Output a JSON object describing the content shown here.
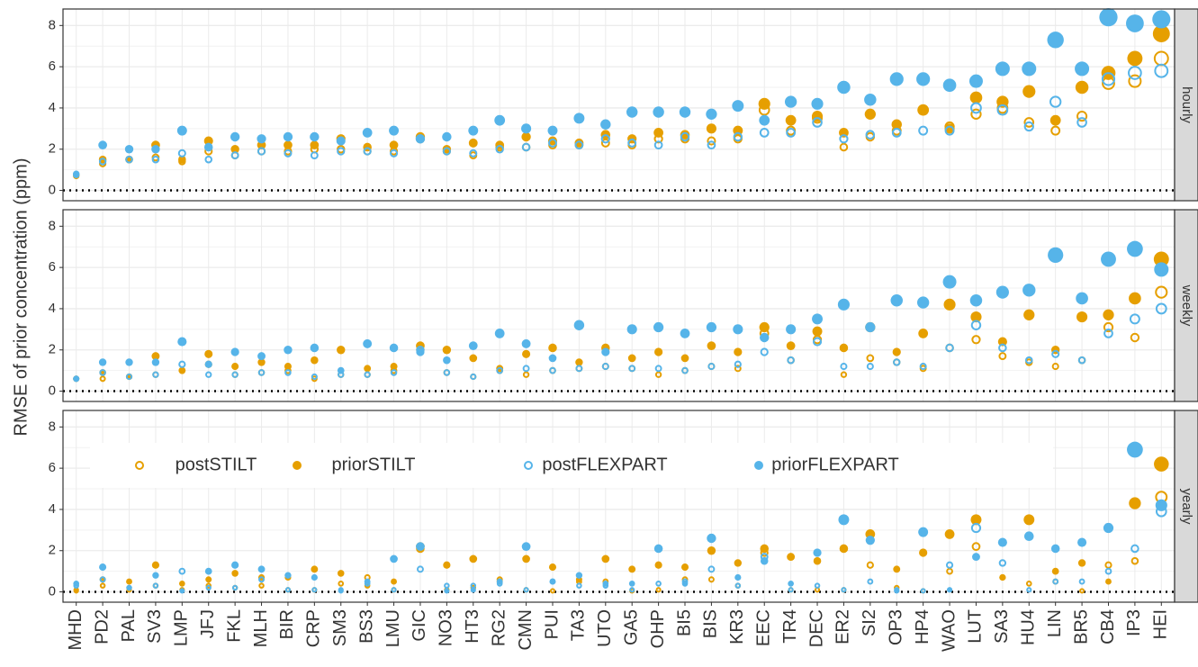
{
  "chart_data": {
    "type": "dot",
    "ylabel": "RMSE of prior concentration (ppm)",
    "categories": [
      "MHD",
      "PD2",
      "PAL",
      "SV3",
      "LMP",
      "JFJ",
      "FKL",
      "MLH",
      "BIR",
      "CRP",
      "SM3",
      "BS3",
      "LMU",
      "GIC",
      "NO3",
      "HT3",
      "RG2",
      "CMN",
      "PUI",
      "TA3",
      "UTO",
      "GA5",
      "OHP",
      "BI5",
      "BIS",
      "KR3",
      "EEC",
      "TR4",
      "DEC",
      "ER2",
      "SI2",
      "OP3",
      "HP4",
      "WAO",
      "LUT",
      "SA3",
      "HU4",
      "LIN",
      "BR5",
      "CB4",
      "IP3",
      "HEI"
    ],
    "ylim": [
      -0.5,
      8.8
    ],
    "yticks": [
      0,
      2,
      4,
      6,
      8
    ],
    "grid": true,
    "hline": 0,
    "series": [
      {
        "name": "postSTILT",
        "color": "#E69F00",
        "marker": "open"
      },
      {
        "name": "priorSTILT",
        "color": "#E69F00",
        "marker": "filled"
      },
      {
        "name": "postFLEXPART",
        "color": "#56B4E9",
        "marker": "open"
      },
      {
        "name": "priorFLEXPART",
        "color": "#56B4E9",
        "marker": "filled"
      }
    ],
    "facets": [
      {
        "label": "hourly",
        "values": [
          [
            0.7,
            1.3,
            1.5,
            1.6,
            1.4,
            1.9,
            1.7,
            1.9,
            1.9,
            2.0,
            2.0,
            1.9,
            1.9,
            2.5,
            1.9,
            1.7,
            2.1,
            2.1,
            2.2,
            2.2,
            2.3,
            2.2,
            2.5,
            2.5,
            2.4,
            2.5,
            3.9,
            2.9,
            3.5,
            2.1,
            2.6,
            2.9,
            3.9,
            3.1,
            3.7,
            4.0,
            3.3,
            2.9,
            3.6,
            5.2,
            5.3,
            6.4
          ],
          [
            0.75,
            1.5,
            1.5,
            2.2,
            1.5,
            2.4,
            2.0,
            2.2,
            2.2,
            2.2,
            2.5,
            2.1,
            2.2,
            2.6,
            2.0,
            2.3,
            2.2,
            2.6,
            2.4,
            2.3,
            2.7,
            2.5,
            2.8,
            2.7,
            3.0,
            2.9,
            4.2,
            3.4,
            3.6,
            2.8,
            3.7,
            3.2,
            3.9,
            3.0,
            4.5,
            4.3,
            4.8,
            3.4,
            5.0,
            5.7,
            6.4,
            7.6
          ],
          [
            0.75,
            1.4,
            1.5,
            1.5,
            1.8,
            1.5,
            1.7,
            1.9,
            1.8,
            1.7,
            1.9,
            1.9,
            1.8,
            2.5,
            1.9,
            1.8,
            2.0,
            2.1,
            2.3,
            2.2,
            2.5,
            2.3,
            2.2,
            2.6,
            2.2,
            2.6,
            2.8,
            2.8,
            3.3,
            2.5,
            2.7,
            2.8,
            2.9,
            2.9,
            4.0,
            3.9,
            3.1,
            4.3,
            3.3,
            5.4,
            5.7,
            5.8
          ],
          [
            0.8,
            2.2,
            2.0,
            2.0,
            2.9,
            2.1,
            2.6,
            2.5,
            2.6,
            2.6,
            2.4,
            2.8,
            2.9,
            2.5,
            2.6,
            2.9,
            3.4,
            3.0,
            2.9,
            3.5,
            3.2,
            3.8,
            3.8,
            3.8,
            3.7,
            4.1,
            3.4,
            4.3,
            4.2,
            5.0,
            4.4,
            5.4,
            5.4,
            5.1,
            5.3,
            5.9,
            5.9,
            7.3,
            5.9,
            8.4,
            8.1,
            8.3
          ]
        ]
      },
      {
        "label": "weekly",
        "values": [
          [
            0.6,
            0.6,
            0.7,
            0.8,
            1.0,
            1.3,
            0.8,
            0.9,
            1.0,
            0.6,
            0.8,
            0.8,
            1.0,
            2.0,
            0.9,
            0.7,
            1.0,
            0.8,
            1.0,
            1.1,
            1.2,
            1.1,
            0.8,
            1.0,
            1.2,
            1.1,
            2.8,
            1.5,
            2.5,
            0.8,
            1.6,
            1.4,
            1.1,
            2.1,
            2.5,
            1.7,
            1.4,
            1.2,
            1.5,
            3.1,
            2.6,
            4.8
          ],
          [
            0.6,
            0.9,
            0.7,
            1.7,
            1.0,
            1.8,
            1.2,
            1.4,
            1.2,
            1.5,
            2.0,
            1.1,
            1.2,
            2.2,
            2.0,
            1.6,
            1.1,
            1.8,
            2.1,
            1.4,
            2.1,
            1.6,
            1.9,
            1.6,
            2.2,
            1.9,
            3.1,
            2.2,
            2.9,
            2.1,
            3.1,
            1.9,
            2.8,
            4.2,
            3.6,
            2.4,
            3.7,
            2.0,
            3.6,
            3.7,
            4.5,
            6.4
          ],
          [
            0.6,
            0.9,
            0.7,
            0.8,
            1.3,
            0.8,
            0.8,
            0.9,
            0.9,
            0.7,
            0.8,
            0.8,
            0.9,
            2.0,
            0.9,
            0.7,
            1.0,
            1.1,
            1.0,
            1.1,
            1.2,
            1.1,
            1.1,
            1.0,
            1.2,
            1.3,
            1.9,
            1.5,
            2.4,
            1.2,
            1.2,
            1.4,
            1.2,
            2.1,
            3.2,
            2.1,
            1.5,
            1.8,
            1.5,
            2.8,
            3.5,
            4.0
          ],
          [
            0.6,
            1.4,
            1.4,
            1.4,
            2.4,
            1.3,
            1.9,
            1.7,
            2.0,
            2.1,
            1.0,
            2.3,
            2.1,
            1.9,
            1.5,
            2.2,
            2.8,
            2.3,
            1.6,
            3.2,
            1.9,
            3.0,
            3.1,
            2.8,
            3.1,
            3.0,
            2.6,
            3.0,
            3.5,
            4.2,
            3.1,
            4.4,
            4.3,
            5.3,
            4.4,
            4.8,
            4.9,
            6.6,
            4.5,
            6.4,
            6.9,
            5.9
          ]
        ]
      },
      {
        "label": "yearly",
        "values": [
          [
            0.1,
            0.3,
            0.1,
            0.3,
            0.1,
            0.3,
            0.2,
            0.3,
            0.1,
            0.1,
            0.4,
            0.7,
            0.1,
            2.2,
            0.1,
            0.2,
            0.6,
            0.1,
            0.05,
            0.5,
            0.5,
            0.05,
            0.1,
            0.6,
            0.6,
            0.3,
            1.9,
            0.1,
            0.1,
            0.1,
            1.3,
            0.2,
            0.05,
            1.0,
            2.2,
            0.7,
            0.4,
            0.5,
            0.05,
            1.3,
            1.5,
            4.6
          ],
          [
            0.05,
            0.6,
            0.5,
            1.3,
            0.4,
            0.6,
            0.9,
            0.7,
            0.7,
            1.1,
            0.9,
            0.3,
            0.5,
            2.1,
            1.3,
            1.6,
            0.5,
            1.6,
            1.2,
            0.6,
            1.6,
            1.1,
            1.3,
            1.2,
            2.0,
            1.4,
            2.1,
            1.7,
            1.5,
            2.1,
            2.8,
            1.1,
            1.9,
            2.8,
            3.5,
            0.7,
            3.5,
            1.0,
            1.4,
            0.5,
            4.3,
            6.2
          ],
          [
            0.3,
            0.6,
            0.2,
            0.3,
            1.0,
            0.2,
            0.2,
            0.6,
            0.1,
            0.1,
            0.1,
            0.4,
            0.1,
            1.1,
            0.3,
            0.3,
            0.4,
            0.1,
            0.5,
            0.3,
            0.3,
            0.1,
            0.4,
            0.5,
            1.1,
            0.3,
            1.7,
            0.1,
            0.3,
            0.1,
            0.5,
            0.1,
            0.05,
            1.3,
            3.1,
            1.4,
            0.1,
            0.5,
            0.5,
            1.0,
            2.1,
            3.9
          ],
          [
            0.4,
            1.2,
            0.2,
            0.8,
            0.05,
            1.0,
            1.3,
            1.1,
            0.8,
            0.7,
            0.05,
            0.5,
            1.6,
            2.2,
            0.05,
            0.1,
            0.5,
            2.2,
            0.5,
            0.8,
            0.4,
            0.4,
            2.1,
            0.4,
            2.6,
            0.7,
            1.5,
            0.4,
            1.9,
            3.5,
            2.5,
            0.05,
            2.9,
            0.1,
            1.7,
            2.4,
            2.7,
            2.1,
            2.4,
            3.1,
            6.9,
            4.2
          ]
        ]
      }
    ]
  }
}
